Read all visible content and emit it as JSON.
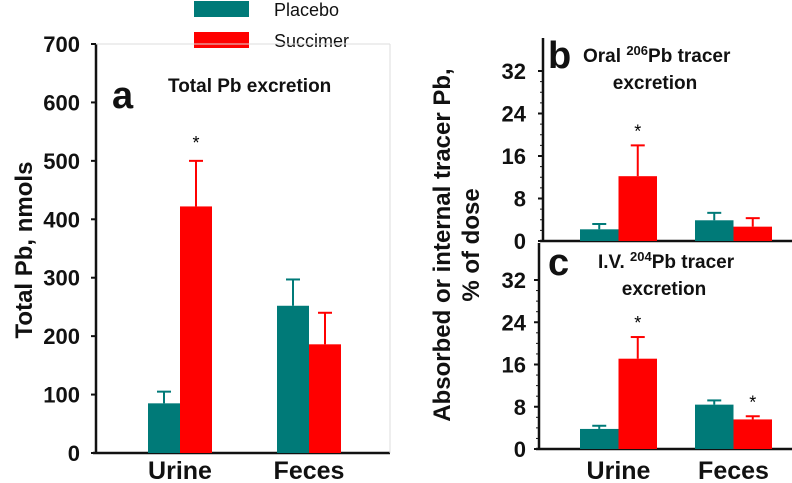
{
  "legend": [
    {
      "label": "Placebo",
      "color": "#007a78"
    },
    {
      "label": "Succimer",
      "color": "#ff0000"
    }
  ],
  "chart_data": [
    {
      "type": "bar",
      "panel": "a",
      "title": "Total Pb excretion",
      "ylabel": "Total Pb, nmols",
      "ylim": [
        0,
        700
      ],
      "yticks": [
        0,
        100,
        200,
        300,
        400,
        500,
        600,
        700
      ],
      "categories": [
        "Urine",
        "Feces"
      ],
      "series": [
        {
          "name": "Placebo",
          "values": [
            85,
            252
          ],
          "error_upper": [
            105,
            297
          ]
        },
        {
          "name": "Succimer",
          "values": [
            422,
            186
          ],
          "error_upper": [
            500,
            240
          ]
        }
      ],
      "significance": [
        {
          "category": "Urine",
          "series": "Succimer",
          "mark": "*"
        }
      ]
    },
    {
      "type": "bar",
      "panel": "b",
      "title_pre": "Oral ",
      "title_sup": "206",
      "title_post": "Pb tracer",
      "title_line2": "excretion",
      "ylim": [
        0,
        36
      ],
      "yticks": [
        0,
        8,
        16,
        24,
        32
      ],
      "categories": [
        "Urine",
        "Feces"
      ],
      "series": [
        {
          "name": "Placebo",
          "values": [
            2.2,
            3.9
          ],
          "error_upper": [
            3.2,
            5.3
          ]
        },
        {
          "name": "Succimer",
          "values": [
            12.2,
            2.7
          ],
          "error_upper": [
            18,
            4.3
          ]
        }
      ],
      "significance": [
        {
          "category": "Urine",
          "series": "Succimer",
          "mark": "*"
        }
      ]
    },
    {
      "type": "bar",
      "panel": "c",
      "title_pre": "I.V. ",
      "title_sup": "204",
      "title_post": "Pb tracer",
      "title_line2": "excretion",
      "ylim": [
        0,
        32
      ],
      "yticks": [
        0,
        8,
        16,
        24,
        32
      ],
      "categories": [
        "Urine",
        "Feces"
      ],
      "series": [
        {
          "name": "Placebo",
          "values": [
            3.8,
            8.4
          ],
          "error_upper": [
            4.4,
            9.2
          ]
        },
        {
          "name": "Succimer",
          "values": [
            17.1,
            5.6
          ],
          "error_upper": [
            21.2,
            6.2
          ]
        }
      ],
      "significance": [
        {
          "category": "Urine",
          "series": "Succimer",
          "mark": "*"
        },
        {
          "category": "Feces",
          "series": "Succimer",
          "mark": "*"
        }
      ]
    }
  ],
  "shared_ylabel_line1": "Absorbed or internal tracer Pb,",
  "shared_ylabel_line2": "% of dose"
}
